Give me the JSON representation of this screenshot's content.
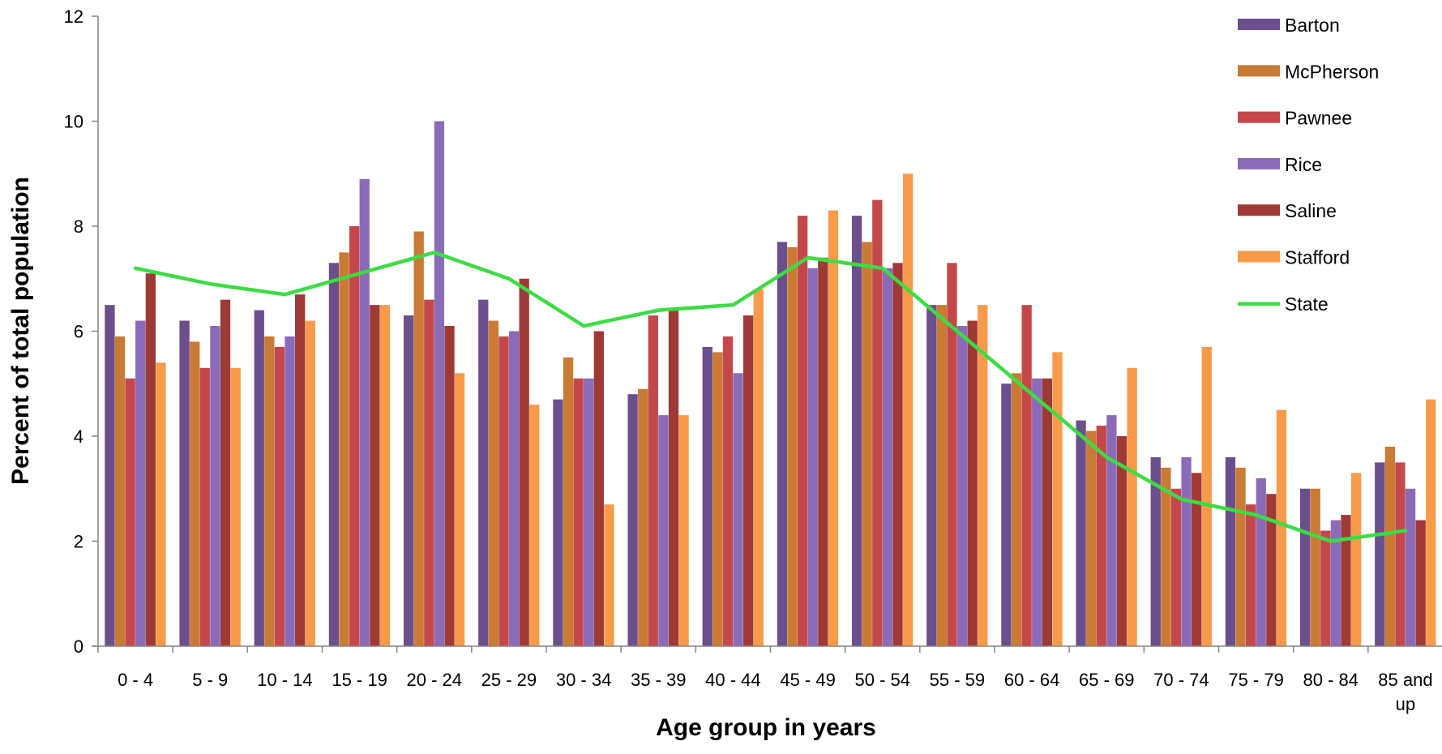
{
  "chart_data": {
    "type": "bar",
    "categories": [
      "0 - 4",
      "5 - 9",
      "10 - 14",
      "15 - 19",
      "20 - 24",
      "25 - 29",
      "30 - 34",
      "35 - 39",
      "40 - 44",
      "45 - 49",
      "50 - 54",
      "55 - 59",
      "60 - 64",
      "65 - 69",
      "70 - 74",
      "75 - 79",
      "80 - 84",
      "85 and up"
    ],
    "series": [
      {
        "name": "Barton",
        "kind": "bar",
        "color": "#6B4F8C",
        "values": [
          6.5,
          6.2,
          6.4,
          7.3,
          6.3,
          6.6,
          4.7,
          4.8,
          5.7,
          7.7,
          8.2,
          6.5,
          5.0,
          4.3,
          3.6,
          3.6,
          3.0,
          3.5
        ]
      },
      {
        "name": "McPherson",
        "kind": "bar",
        "color": "#C97A35",
        "values": [
          5.9,
          5.8,
          5.9,
          7.5,
          7.9,
          6.2,
          5.5,
          4.9,
          5.6,
          7.6,
          7.7,
          6.5,
          5.2,
          4.1,
          3.4,
          3.4,
          3.0,
          3.8
        ]
      },
      {
        "name": "Pawnee",
        "kind": "bar",
        "color": "#C4484A",
        "values": [
          5.1,
          5.3,
          5.7,
          8.0,
          6.6,
          5.9,
          5.1,
          6.3,
          5.9,
          8.2,
          8.5,
          7.3,
          6.5,
          4.2,
          3.0,
          2.7,
          2.2,
          3.5
        ]
      },
      {
        "name": "Rice",
        "kind": "bar",
        "color": "#8B6BB8",
        "values": [
          6.2,
          6.1,
          5.9,
          8.9,
          10.0,
          6.0,
          5.1,
          4.4,
          5.2,
          7.2,
          7.2,
          6.1,
          5.1,
          4.4,
          3.6,
          3.2,
          2.4,
          3.0
        ]
      },
      {
        "name": "Saline",
        "kind": "bar",
        "color": "#9E3A36",
        "values": [
          7.1,
          6.6,
          6.7,
          6.5,
          6.1,
          7.0,
          6.0,
          6.4,
          6.3,
          7.4,
          7.3,
          6.2,
          5.1,
          4.0,
          3.3,
          2.9,
          2.5,
          2.4
        ]
      },
      {
        "name": "Stafford",
        "kind": "bar",
        "color": "#F79B4B",
        "values": [
          5.4,
          5.3,
          6.2,
          6.5,
          5.2,
          4.6,
          2.7,
          4.4,
          6.8,
          8.3,
          9.0,
          6.5,
          5.6,
          5.3,
          5.7,
          4.5,
          3.3,
          4.7
        ]
      },
      {
        "name": "State",
        "kind": "line",
        "color": "#3DDC44",
        "values": [
          7.2,
          6.9,
          6.7,
          7.1,
          7.5,
          7.0,
          6.1,
          6.4,
          6.5,
          7.4,
          7.2,
          6.0,
          4.8,
          3.6,
          2.8,
          2.5,
          2.0,
          2.2
        ]
      }
    ],
    "xlabel": "Age group in years",
    "ylabel": "Percent of total population",
    "ylim": [
      0,
      12
    ],
    "yticks": [
      0,
      2,
      4,
      6,
      8,
      10,
      12
    ],
    "grid": false,
    "legend_position": "top-right"
  }
}
